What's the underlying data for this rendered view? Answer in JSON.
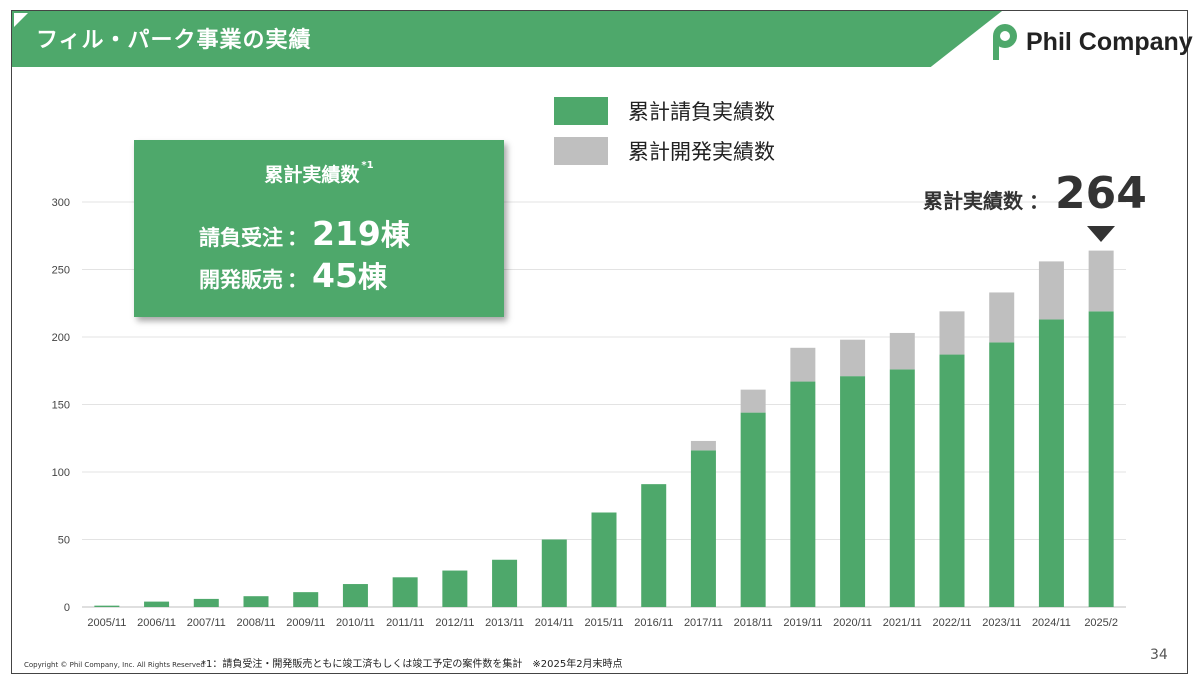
{
  "header": {
    "title": "フィル・パーク事業の実績"
  },
  "logo": {
    "text": "Phil Company"
  },
  "legend": {
    "items": [
      {
        "label": "累計請負実績数",
        "color": "#4ea86b"
      },
      {
        "label": "累計開発実績数",
        "color": "#bfbfbf"
      }
    ]
  },
  "summary": {
    "title": "累計実績数",
    "title_sup": "*1",
    "contract_label": "請負受注",
    "contract_value": "219",
    "contract_unit": "棟",
    "dev_label": "開発販売",
    "dev_value": "45",
    "dev_unit": "棟",
    "colon": "："
  },
  "total": {
    "label": "累計実績数",
    "colon": "：",
    "value": "264"
  },
  "chart_data": {
    "type": "bar",
    "stacked": true,
    "categories": [
      "2005/11",
      "2006/11",
      "2007/11",
      "2008/11",
      "2009/11",
      "2010/11",
      "2011/11",
      "2012/11",
      "2013/11",
      "2014/11",
      "2015/11",
      "2016/11",
      "2017/11",
      "2018/11",
      "2019/11",
      "2020/11",
      "2021/11",
      "2022/11",
      "2023/11",
      "2024/11",
      "2025/2"
    ],
    "series": [
      {
        "name": "累計請負実績数",
        "color": "#4ea86b",
        "values": [
          1,
          4,
          6,
          8,
          11,
          17,
          22,
          27,
          35,
          50,
          70,
          91,
          116,
          144,
          167,
          171,
          176,
          187,
          196,
          213,
          219
        ]
      },
      {
        "name": "累計開発実績数",
        "color": "#bfbfbf",
        "values": [
          0,
          0,
          0,
          0,
          0,
          0,
          0,
          0,
          0,
          0,
          0,
          0,
          7,
          17,
          25,
          27,
          27,
          32,
          37,
          43,
          45
        ]
      }
    ],
    "ylim": [
      0,
      300
    ],
    "yticks": [
      0,
      50,
      100,
      150,
      200,
      250,
      300
    ],
    "grid": true,
    "legend": "top-center"
  },
  "footer": {
    "copyright": "Copyright © Phil Company, Inc.  All Rights Reserved",
    "footnote": "*1：請負受注・開発販売ともに竣工済もしくは竣工予定の案件数を集計　※2025年2月末時点",
    "page": "34"
  }
}
